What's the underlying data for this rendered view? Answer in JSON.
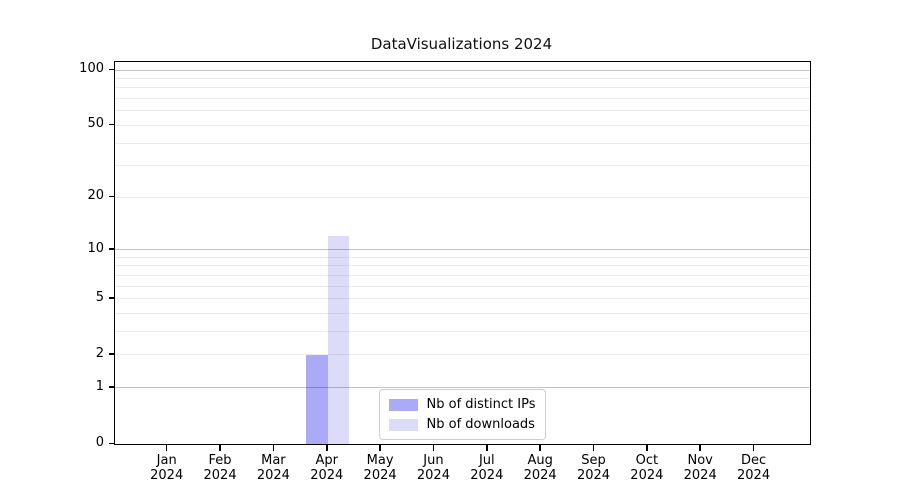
{
  "chart_data": {
    "type": "bar",
    "title": "DataVisualizations 2024",
    "categories": [
      "Jan 2024",
      "Feb 2024",
      "Mar 2024",
      "Apr 2024",
      "May 2024",
      "Jun 2024",
      "Jul 2024",
      "Aug 2024",
      "Sep 2024",
      "Oct 2024",
      "Nov 2024",
      "Dec 2024"
    ],
    "series": [
      {
        "name": "Nb of distinct IPs",
        "color": "#aaaaf7",
        "values": [
          0,
          0,
          0,
          2,
          0,
          0,
          0,
          0,
          0,
          0,
          0,
          0
        ]
      },
      {
        "name": "Nb of downloads",
        "color": "#dcdcf8",
        "values": [
          0,
          0,
          0,
          12,
          0,
          0,
          0,
          0,
          0,
          0,
          0,
          0
        ]
      }
    ],
    "xlabel": "",
    "ylabel": "",
    "yscale": "log1p",
    "ylim": [
      0,
      110.5
    ],
    "yticks": [
      0,
      1,
      2,
      5,
      10,
      20,
      50,
      100
    ],
    "minor_gridlines": [
      2,
      3,
      4,
      5,
      6,
      7,
      8,
      9,
      20,
      30,
      40,
      50,
      60,
      70,
      80,
      90
    ],
    "major_gridlines": [
      1,
      10,
      100
    ],
    "grid": true,
    "legend": {
      "position": "lower center",
      "entries": [
        "Nb of distinct IPs",
        "Nb of downloads"
      ]
    }
  },
  "colors": {
    "background": "#ffffff",
    "frame": "#000000",
    "grid_minor": "rgba(0,0,0,0.08)",
    "grid_major": "rgba(0,0,0,0.23)",
    "legend_border": "#cccccc",
    "text": "#000000"
  }
}
